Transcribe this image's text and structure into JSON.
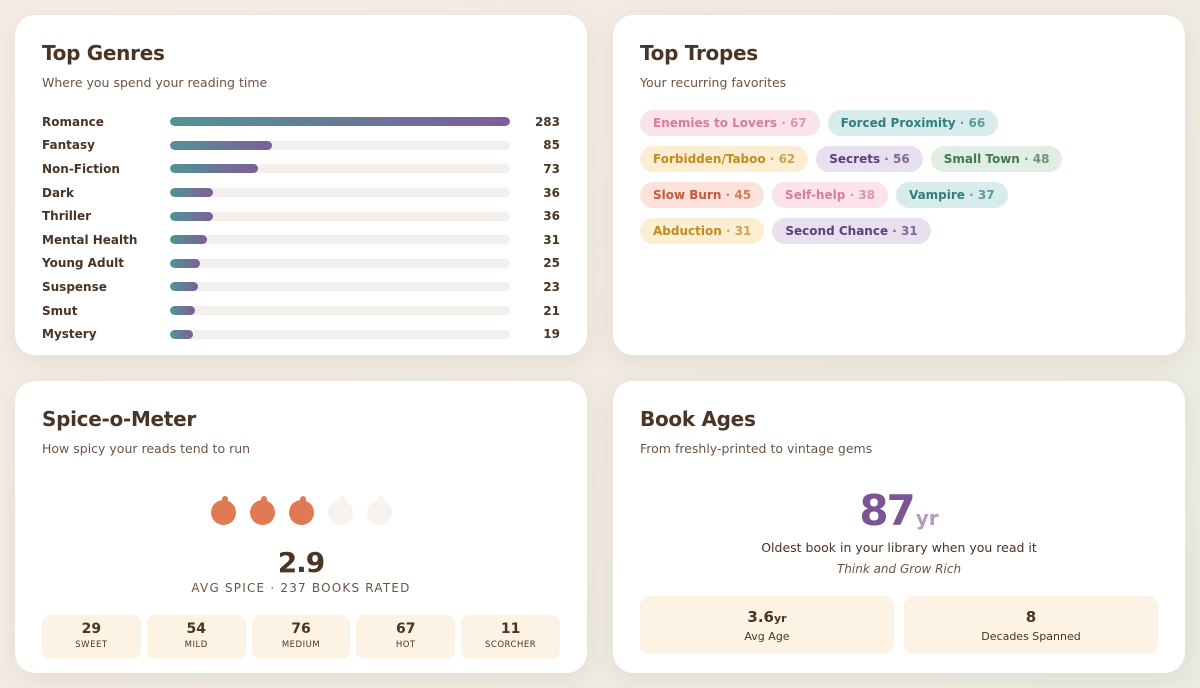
{
  "genres": {
    "title": "Top Genres",
    "subtitle": "Where you spend your reading time",
    "max": 283,
    "items": [
      {
        "name": "Romance",
        "count": 283
      },
      {
        "name": "Fantasy",
        "count": 85
      },
      {
        "name": "Non-Fiction",
        "count": 73
      },
      {
        "name": "Dark",
        "count": 36
      },
      {
        "name": "Thriller",
        "count": 36
      },
      {
        "name": "Mental Health",
        "count": 31
      },
      {
        "name": "Young Adult",
        "count": 25
      },
      {
        "name": "Suspense",
        "count": 23
      },
      {
        "name": "Smut",
        "count": 21
      },
      {
        "name": "Mystery",
        "count": 19
      }
    ],
    "bar_gradient": [
      "#4f9596",
      "#7f5d97"
    ]
  },
  "tropes": {
    "title": "Top Tropes",
    "subtitle": "Your recurring favorites",
    "items": [
      {
        "name": "Enemies to Lovers",
        "count": "67",
        "color": "pink"
      },
      {
        "name": "Forced Proximity",
        "count": "66",
        "color": "teal"
      },
      {
        "name": "Forbidden/Taboo",
        "count": "62",
        "color": "gold"
      },
      {
        "name": "Secrets",
        "count": "56",
        "color": "purple"
      },
      {
        "name": "Small Town",
        "count": "48",
        "color": "green"
      },
      {
        "name": "Slow Burn",
        "count": "45",
        "color": "peach"
      },
      {
        "name": "Self-help",
        "count": "38",
        "color": "pink"
      },
      {
        "name": "Vampire",
        "count": "37",
        "color": "teal"
      },
      {
        "name": "Abduction",
        "count": "31",
        "color": "gold"
      },
      {
        "name": "Second Chance",
        "count": "31",
        "color": "purple"
      }
    ],
    "separator": " · "
  },
  "spice": {
    "title": "Spice-o-Meter",
    "subtitle": "How spicy your reads tend to run",
    "peppers_total": 5,
    "peppers_filled": 3,
    "pepper_icon": "chili-pepper-icon",
    "avg": "2.9",
    "caption": "AVG SPICE · 237 BOOKS RATED",
    "levels": [
      {
        "count": "29",
        "label": "SWEET"
      },
      {
        "count": "54",
        "label": "MILD"
      },
      {
        "count": "76",
        "label": "MEDIUM"
      },
      {
        "count": "67",
        "label": "HOT"
      },
      {
        "count": "11",
        "label": "SCORCHER"
      }
    ],
    "accent": "#e07a55"
  },
  "ages": {
    "title": "Book Ages",
    "subtitle": "From freshly-printed to vintage gems",
    "oldest_value": "87",
    "oldest_unit": "yr",
    "oldest_desc": "Oldest book in your library when you read it",
    "oldest_book": "Think and Grow Rich",
    "stats": [
      {
        "value": "3.6",
        "unit": "yr",
        "label": "Avg Age"
      },
      {
        "value": "8",
        "unit": "",
        "label": "Decades Spanned"
      }
    ],
    "accent": "#7c5493"
  }
}
